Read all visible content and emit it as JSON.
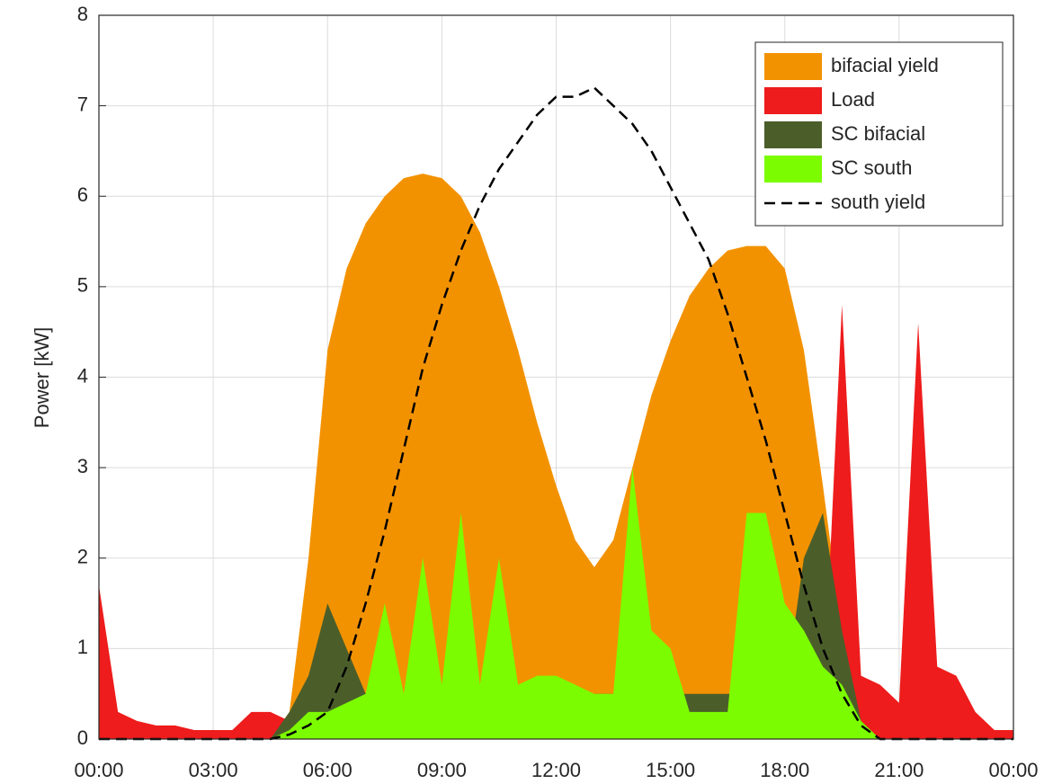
{
  "chart_data": {
    "type": "area",
    "y_label": "Power [kW]",
    "x": [
      0,
      0.5,
      1,
      1.5,
      2,
      2.5,
      3,
      3.5,
      4,
      4.5,
      5,
      5.5,
      6,
      6.5,
      7,
      7.5,
      8,
      8.5,
      9,
      9.5,
      10,
      10.5,
      11,
      11.5,
      12,
      12.5,
      13,
      13.5,
      14,
      14.5,
      15,
      15.5,
      16,
      16.5,
      17,
      17.5,
      18,
      18.5,
      19,
      19.5,
      20,
      20.5,
      21,
      21.5,
      22,
      22.5,
      23,
      23.5,
      24
    ],
    "xlim": [
      0,
      24
    ],
    "xticks": [
      {
        "value": 0,
        "label": "00:00"
      },
      {
        "value": 3,
        "label": "03:00"
      },
      {
        "value": 6,
        "label": "06:00"
      },
      {
        "value": 9,
        "label": "09:00"
      },
      {
        "value": 12,
        "label": "12:00"
      },
      {
        "value": 15,
        "label": "15:00"
      },
      {
        "value": 18,
        "label": "18:00"
      },
      {
        "value": 21,
        "label": "21:00"
      },
      {
        "value": 24,
        "label": "00:00"
      }
    ],
    "ylim": [
      0,
      8
    ],
    "yticks": [
      0,
      1,
      2,
      3,
      4,
      5,
      6,
      7,
      8
    ],
    "grid": true,
    "legend": "top-right",
    "series": [
      {
        "name": "bifacial yield",
        "color": "#f39200",
        "style": "area",
        "values": [
          0,
          0,
          0,
          0,
          0,
          0,
          0,
          0,
          0,
          0,
          0.3,
          2,
          4.3,
          5.2,
          5.7,
          6.0,
          6.2,
          6.25,
          6.2,
          6.0,
          5.6,
          5.0,
          4.3,
          3.5,
          2.8,
          2.2,
          1.9,
          2.2,
          3.0,
          3.8,
          4.4,
          4.9,
          5.2,
          5.4,
          5.45,
          5.45,
          5.2,
          4.3,
          2.8,
          1.2,
          0.2,
          0,
          0,
          0,
          0,
          0,
          0,
          0,
          0
        ]
      },
      {
        "name": "Load",
        "color": "#ee1c1c",
        "style": "area",
        "values": [
          1.7,
          0.3,
          0.2,
          0.15,
          0.15,
          0.1,
          0.1,
          0.1,
          0.3,
          0.3,
          0.2,
          0.3,
          0.3,
          0.3,
          0.3,
          0.3,
          0.3,
          0.3,
          0.3,
          0.3,
          0.3,
          0.3,
          0.3,
          0.3,
          0.3,
          0.3,
          0.3,
          0.3,
          0.3,
          0.3,
          0.3,
          0.3,
          0.3,
          0.3,
          0.3,
          0.3,
          0.3,
          0.3,
          0.3,
          4.8,
          0.7,
          0.6,
          0.4,
          4.6,
          0.8,
          0.7,
          0.3,
          0.1,
          0.1
        ]
      },
      {
        "name": "SC bifacial",
        "color": "#4b5e2a",
        "style": "area",
        "values": [
          0,
          0,
          0,
          0,
          0,
          0,
          0,
          0,
          0,
          0,
          0.3,
          0.7,
          1.5,
          1.0,
          0.5,
          0.5,
          0.5,
          0.5,
          0.5,
          0.5,
          0.5,
          0.5,
          0.5,
          0.5,
          0.5,
          0.5,
          0.5,
          0.5,
          0.5,
          0.5,
          0.5,
          0.5,
          0.5,
          0.5,
          0.5,
          0.5,
          0.5,
          2.0,
          2.5,
          1.2,
          0.2,
          0,
          0,
          0,
          0,
          0,
          0,
          0,
          0
        ]
      },
      {
        "name": "SC south",
        "color": "#7cfc00",
        "style": "area",
        "values": [
          0,
          0,
          0,
          0,
          0,
          0,
          0,
          0,
          0,
          0,
          0.1,
          0.3,
          0.3,
          0.4,
          0.5,
          1.5,
          0.5,
          2.0,
          0.6,
          2.5,
          0.6,
          2.0,
          0.6,
          0.7,
          0.7,
          0.6,
          0.5,
          0.5,
          3.0,
          1.2,
          1.0,
          0.3,
          0.3,
          0.3,
          2.5,
          2.5,
          1.5,
          1.2,
          0.8,
          0.6,
          0.2,
          0,
          0,
          0,
          0,
          0,
          0,
          0,
          0
        ]
      },
      {
        "name": "south yield",
        "color": "#000000",
        "style": "dashed",
        "values": [
          0,
          0,
          0,
          0,
          0,
          0,
          0,
          0,
          0,
          0,
          0.05,
          0.15,
          0.3,
          0.8,
          1.5,
          2.3,
          3.2,
          4.1,
          4.8,
          5.4,
          5.9,
          6.3,
          6.6,
          6.9,
          7.1,
          7.1,
          7.2,
          7.0,
          6.8,
          6.5,
          6.1,
          5.7,
          5.3,
          4.7,
          4.0,
          3.3,
          2.5,
          1.7,
          1.0,
          0.5,
          0.15,
          0,
          0,
          0,
          0,
          0,
          0,
          0,
          0
        ]
      }
    ]
  }
}
